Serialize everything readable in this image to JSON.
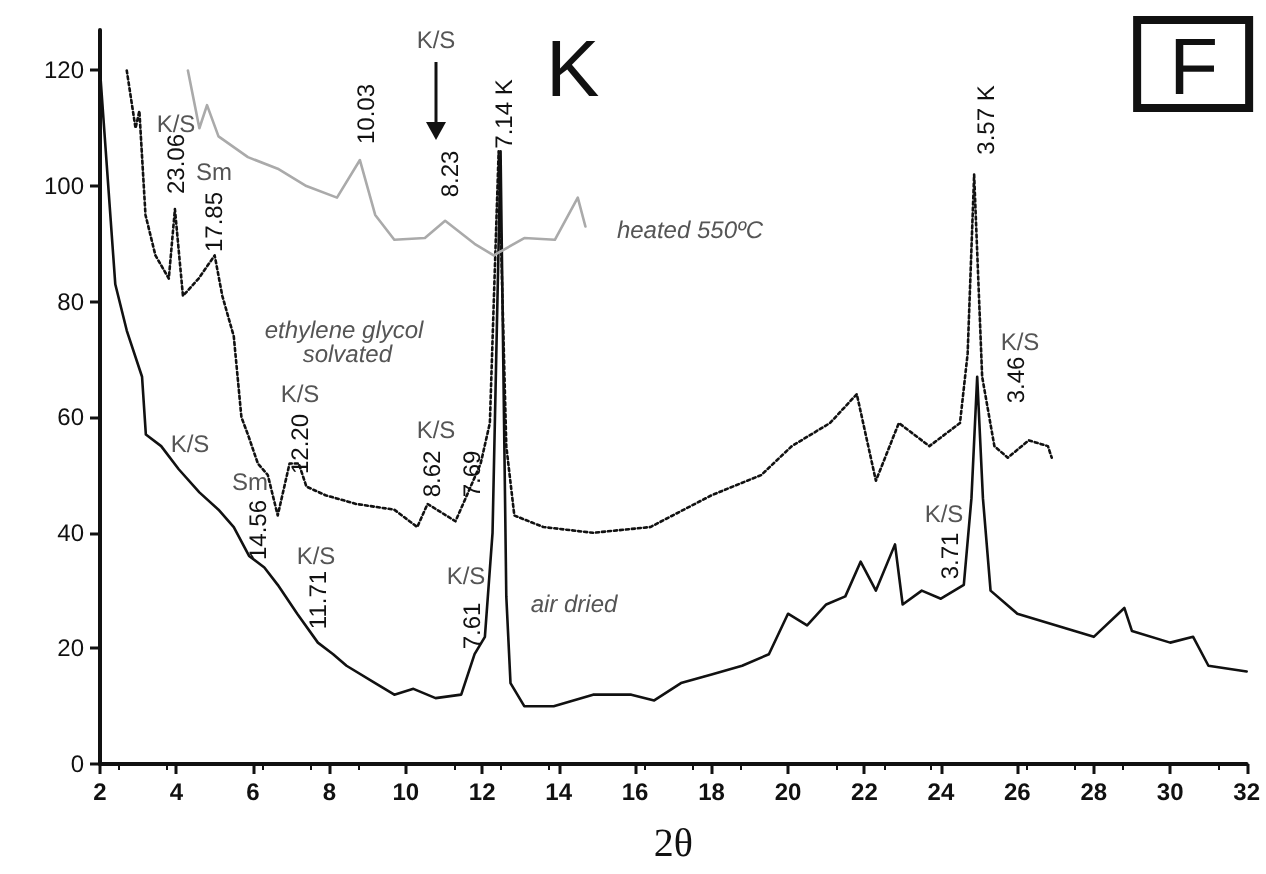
{
  "chart_data": {
    "type": "line",
    "title": "K",
    "subtitle": "F",
    "xlabel": "2θ",
    "xlim": [
      2,
      32
    ],
    "xticks": [
      2,
      4,
      6,
      8,
      10,
      12,
      14,
      16,
      18,
      20,
      22,
      24,
      26,
      28,
      30,
      32
    ],
    "ylim": [
      0,
      127
    ],
    "yticks": [
      0,
      20,
      40,
      60,
      80,
      100,
      120
    ],
    "grid": false,
    "marker": "none",
    "series": [
      {
        "color": "#111111",
        "line_style": "solid",
        "x": [
          2,
          2.4,
          2.7,
          3.1,
          3.2,
          3.6,
          4.06,
          4.6,
          5.1,
          5.5,
          5.9,
          6.3,
          6.65,
          7.16,
          7.7,
          8.1,
          8.45,
          9.2,
          9.7,
          10.2,
          10.78,
          11.45,
          11.8,
          12.07,
          12.27,
          12.48,
          12.63,
          12.74,
          13.1,
          13.87,
          14.9,
          15.9,
          16.5,
          17.2,
          18,
          18.8,
          19.5,
          20,
          20.5,
          21,
          21.5,
          21.9,
          22.3,
          22.8,
          23,
          23.5,
          24,
          24.6,
          24.8,
          24.95,
          25.1,
          25.3,
          26,
          27,
          28,
          28.8,
          29,
          30,
          30.6,
          31,
          32
        ],
        "values": [
          120,
          83,
          75,
          67,
          57,
          55,
          51,
          47,
          44,
          41,
          36,
          34,
          31,
          26,
          21,
          19,
          17,
          14,
          12,
          13,
          11.4,
          12,
          19,
          22,
          40,
          106,
          29,
          14,
          10,
          10,
          12,
          12,
          11,
          14,
          15.5,
          17,
          19,
          26,
          24,
          27.6,
          29,
          35,
          30,
          38,
          27.6,
          30,
          28.6,
          31,
          46,
          67,
          46,
          30,
          26,
          24,
          22,
          27,
          23,
          21,
          22,
          17,
          16
        ]
      },
      {
        "color": "#111111",
        "line_style": "dotted",
        "x": [
          2.7,
          2.93,
          3.03,
          3.19,
          3.45,
          3.8,
          3.96,
          4.17,
          4.58,
          5.0,
          5.2,
          5.5,
          5.7,
          5.87,
          6.13,
          6.39,
          6.65,
          6.96,
          7.2,
          7.4,
          7.9,
          8.7,
          9.7,
          10.3,
          10.57,
          11.3,
          11.6,
          11.96,
          12.2,
          12.43,
          12.63,
          12.84,
          13.6,
          14.9,
          16.4,
          18,
          19.3,
          20.1,
          21.1,
          21.8,
          22.3,
          22.9,
          23.7,
          24.5,
          24.7,
          24.87,
          25.08,
          25.4,
          25.75,
          26.3,
          26.8,
          26.9
        ],
        "values": [
          120,
          110,
          113,
          95,
          88,
          84,
          96,
          81,
          84,
          88,
          81,
          74,
          60,
          57,
          52,
          50,
          43,
          52,
          52,
          48,
          46.5,
          45,
          44,
          41,
          45,
          42,
          46.5,
          52,
          59,
          106,
          55,
          43,
          41,
          40,
          41,
          46.5,
          50,
          55,
          59,
          64,
          49,
          59,
          55,
          59,
          71,
          102,
          67,
          55,
          53,
          56,
          55,
          53
        ]
      },
      {
        "color": "#aaaaaa",
        "line_style": "solid",
        "x": [
          4.3,
          4.6,
          4.8,
          5.1,
          5.87,
          6.65,
          7.4,
          8.2,
          8.8,
          9.2,
          9.7,
          10.5,
          11.03,
          11.8,
          12.3,
          13.1,
          13.9,
          14.5,
          14.7
        ],
        "values": [
          120,
          110,
          114,
          108.6,
          105,
          103,
          100,
          98,
          104.5,
          95,
          90.7,
          91,
          94,
          90,
          88,
          91,
          90.7,
          98,
          93
        ]
      }
    ],
    "annotations": [
      "K/S",
      "23.06",
      "Sm",
      "17.85",
      "10.03",
      "K/S",
      "8.23",
      "7.14 K",
      "heated 550ºC",
      "ethylene glycol solvated",
      "K/S",
      "12.20",
      "K/S",
      "8.62",
      "7.69",
      "K/S",
      "Sm",
      "14.56",
      "K/S",
      "11.71",
      "K/S",
      "7.61",
      "air dried",
      "3.57 K",
      "K/S",
      "3.46",
      "K/S",
      "3.71"
    ]
  }
}
